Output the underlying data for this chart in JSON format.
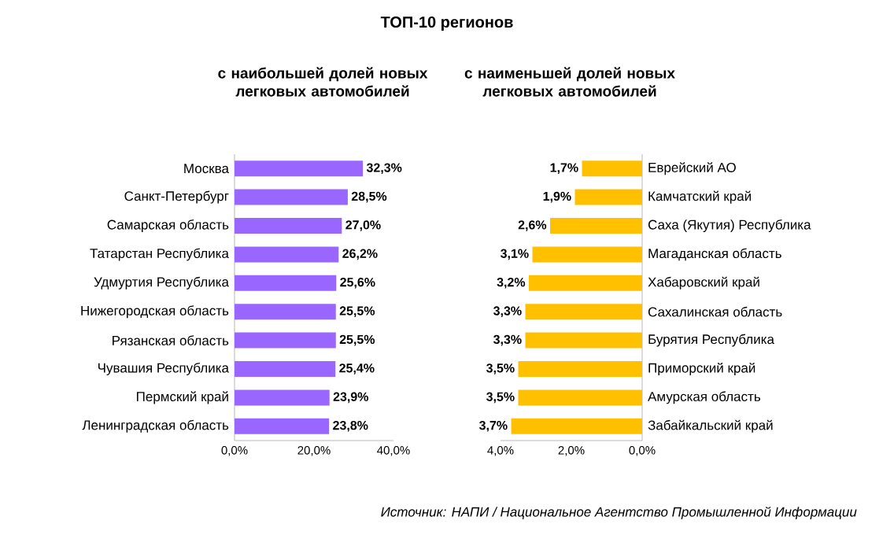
{
  "chart_data": [
    {
      "type": "bar",
      "orientation": "horizontal",
      "title": "ТОП-10 регионов",
      "subtitle": "с наибольшей долей новых легковых автомобилей",
      "categories": [
        "Москва",
        "Санкт-Петербург",
        "Самарская область",
        "Татарстан Республика",
        "Удмуртия Республика",
        "Нижегородская область",
        "Рязанская область",
        "Чувашия Республика",
        "Пермский край",
        "Ленинградская область"
      ],
      "values": [
        32.3,
        28.5,
        27.0,
        26.2,
        25.6,
        25.5,
        25.5,
        25.4,
        23.9,
        23.8
      ],
      "value_labels": [
        "32,3%",
        "28,5%",
        "27,0%",
        "26,2%",
        "25,6%",
        "25,5%",
        "25,5%",
        "25,4%",
        "23,9%",
        "23,8%"
      ],
      "color": "#9966ff",
      "xlim": [
        0,
        40
      ],
      "xticks": [
        {
          "value": 0,
          "label": "0,0%"
        },
        {
          "value": 20,
          "label": "20,0%"
        },
        {
          "value": 40,
          "label": "40,0%"
        }
      ]
    },
    {
      "type": "bar",
      "orientation": "horizontal",
      "subtitle": "с наименьшей долей новых легковых автомобилей",
      "categories": [
        "Еврейский АО",
        "Камчатский край",
        "Саха (Якутия) Республика",
        "Магаданская область",
        "Хабаровский край",
        "Сахалинская область",
        "Бурятия Республика",
        "Приморский край",
        "Амурская область",
        "Забайкальский край"
      ],
      "values": [
        1.7,
        1.9,
        2.6,
        3.1,
        3.2,
        3.3,
        3.3,
        3.5,
        3.5,
        3.7
      ],
      "value_labels": [
        "1,7%",
        "1,9%",
        "2,6%",
        "3,1%",
        "3,2%",
        "3,3%",
        "3,3%",
        "3,5%",
        "3,5%",
        "3,7%"
      ],
      "color": "#ffc000",
      "xlim": [
        4,
        0
      ],
      "xticks": [
        {
          "value": 4,
          "label": "4,0%"
        },
        {
          "value": 2,
          "label": "2,0%"
        },
        {
          "value": 0,
          "label": "0,0%"
        }
      ],
      "annotations": [
        "Источник: НАПИ / Национальное Агентство Промышленной Информации"
      ]
    }
  ]
}
